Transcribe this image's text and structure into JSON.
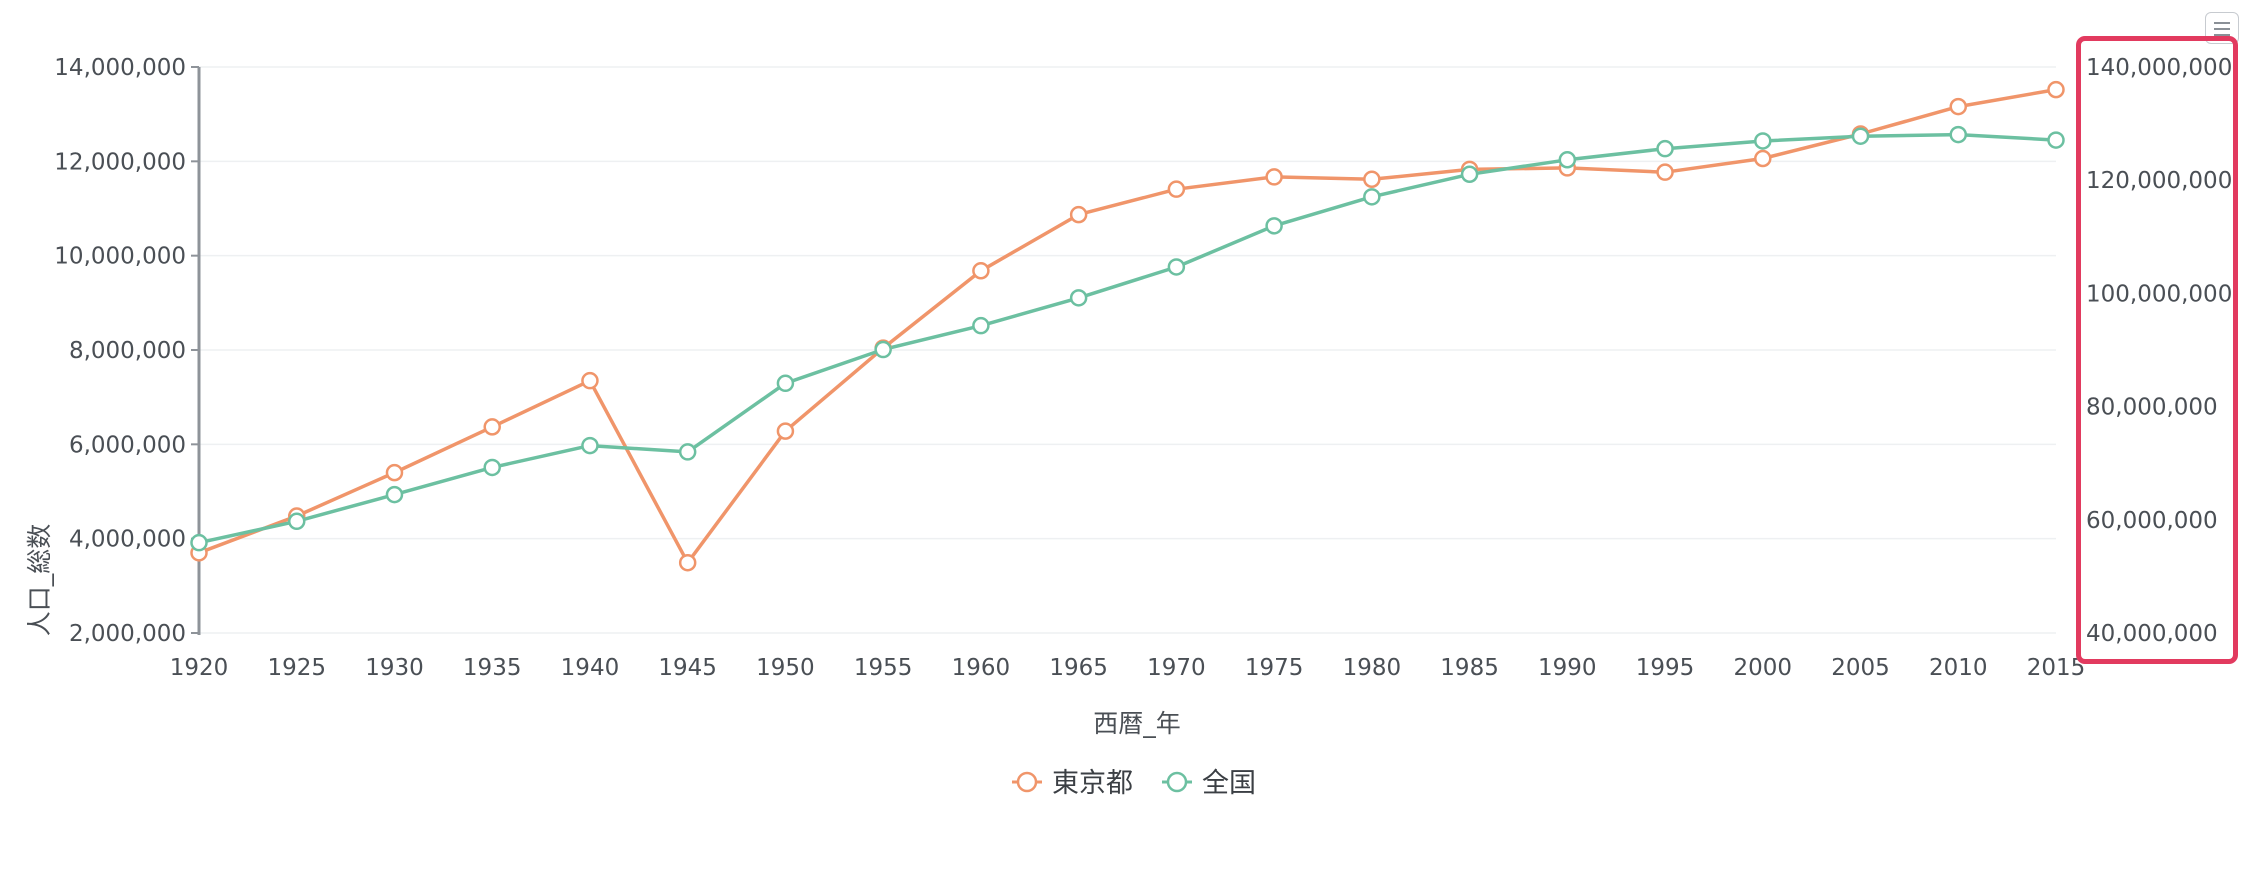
{
  "chart_data": {
    "type": "line",
    "x": [
      "1920",
      "1925",
      "1930",
      "1935",
      "1940",
      "1945",
      "1950",
      "1955",
      "1960",
      "1965",
      "1970",
      "1975",
      "1980",
      "1985",
      "1990",
      "1995",
      "2000",
      "2005",
      "2010",
      "2015"
    ],
    "xlabel": "西暦_年",
    "ylabel": "人口_総数",
    "y_left": {
      "ticks": [
        "14,000,000",
        "12,000,000",
        "10,000,000",
        "8,000,000",
        "6,000,000",
        "4,000,000",
        "2,000,000"
      ],
      "range": [
        2000000,
        14000000
      ]
    },
    "y_right": {
      "ticks": [
        "140,000,000",
        "120,000,000",
        "100,000,000",
        "80,000,000",
        "60,000,000",
        "40,000,000"
      ],
      "range": [
        40000000,
        140000000
      ]
    },
    "series": [
      {
        "name": "東京都",
        "axis": "left",
        "color": "#f0956a",
        "values": [
          3700000,
          4480000,
          5400000,
          6370000,
          7350000,
          3490000,
          6280000,
          8040000,
          9680000,
          10870000,
          11410000,
          11670000,
          11620000,
          11830000,
          11860000,
          11770000,
          12060000,
          12580000,
          13160000,
          13520000
        ]
      },
      {
        "name": "全国",
        "axis": "right",
        "color": "#6cc0a1",
        "values": [
          55960000,
          59740000,
          64450000,
          69250000,
          73110000,
          71990000,
          84120000,
          90080000,
          94300000,
          99210000,
          104670000,
          111940000,
          117060000,
          121050000,
          123610000,
          125570000,
          126930000,
          127770000,
          128060000,
          127090000
        ]
      }
    ],
    "grid": true,
    "legend_position": "bottom-center",
    "highlighted_region": "right-y-axis"
  },
  "toolbar": {
    "menu_icon": "hamburger-menu-icon"
  }
}
